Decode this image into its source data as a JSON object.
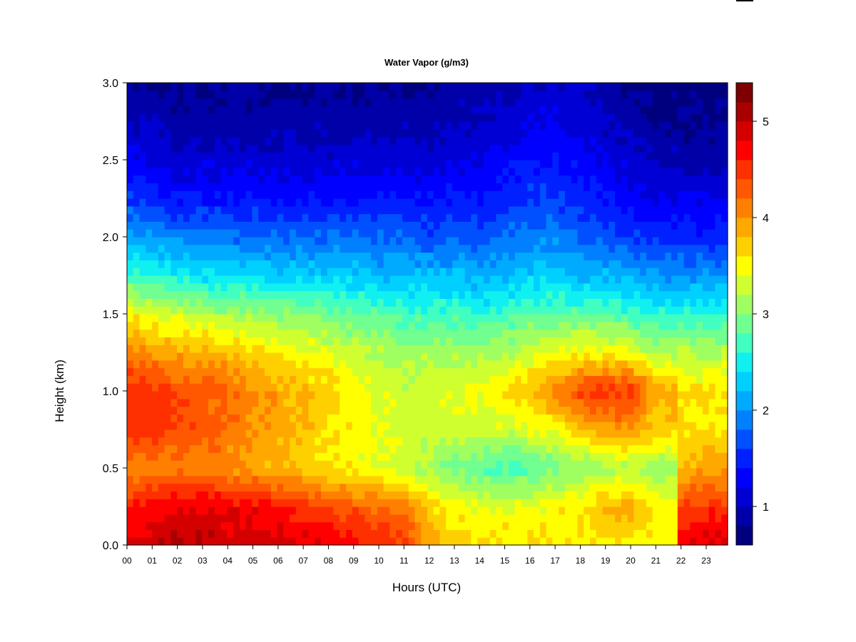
{
  "chart_data": {
    "type": "heatmap",
    "title": "Water Vapor (g/m3)",
    "xlabel": "Hours (UTC)",
    "ylabel": "Height (km)",
    "xlim": [
      0,
      23.85
    ],
    "ylim": [
      0.0,
      3.0
    ],
    "x_ticks": [
      "00",
      "01",
      "02",
      "03",
      "04",
      "05",
      "06",
      "07",
      "08",
      "09",
      "10",
      "11",
      "12",
      "13",
      "14",
      "15",
      "16",
      "17",
      "18",
      "19",
      "20",
      "21",
      "22",
      "23"
    ],
    "y_ticks": [
      "0.0",
      "0.5",
      "1.0",
      "1.5",
      "2.0",
      "2.5",
      "3.0"
    ],
    "colorbar": {
      "min": 0.6,
      "max": 5.4,
      "ticks": [
        "1",
        "2",
        "3",
        "4",
        "5"
      ],
      "colors": [
        "#00007f",
        "#0000a8",
        "#0000d4",
        "#0000ff",
        "#0020ff",
        "#0050ff",
        "#0080ff",
        "#00aaff",
        "#00d0ff",
        "#10f0f0",
        "#40ffc0",
        "#70ff90",
        "#a0ff60",
        "#d0ff30",
        "#ffff00",
        "#ffd000",
        "#ffa800",
        "#ff8000",
        "#ff5800",
        "#ff3000",
        "#ff0000",
        "#d40000",
        "#a80000",
        "#7f0000"
      ]
    },
    "values_note": "",
    "heights_km": [
      0.05,
      0.25,
      0.5,
      0.75,
      1.0,
      1.25,
      1.5,
      1.75,
      2.0,
      2.25,
      2.5,
      2.75,
      3.0
    ],
    "hours": [
      0,
      1,
      2,
      3,
      4,
      5,
      6,
      7,
      8,
      9,
      10,
      11,
      12,
      13,
      14,
      15,
      16,
      17,
      18,
      19,
      20,
      21,
      22,
      23
    ],
    "profiles": [
      [
        4.8,
        4.6,
        4.0,
        4.5,
        4.6,
        4.1,
        3.5,
        2.7,
        2.1,
        1.6,
        1.3,
        1.0,
        0.8
      ],
      [
        4.9,
        4.7,
        4.1,
        4.5,
        4.5,
        4.0,
        3.4,
        2.6,
        2.0,
        1.5,
        1.2,
        1.0,
        0.8
      ],
      [
        5.0,
        4.8,
        4.1,
        4.4,
        4.4,
        3.9,
        3.3,
        2.5,
        1.9,
        1.4,
        1.1,
        0.9,
        0.8
      ],
      [
        5.0,
        4.8,
        4.1,
        4.3,
        4.3,
        3.9,
        3.2,
        2.4,
        1.9,
        1.4,
        1.1,
        0.9,
        0.7
      ],
      [
        4.9,
        4.8,
        4.0,
        4.2,
        4.2,
        3.8,
        3.1,
        2.4,
        1.8,
        1.4,
        1.1,
        0.9,
        0.8
      ],
      [
        4.9,
        4.7,
        3.9,
        4.0,
        4.1,
        3.7,
        3.1,
        2.4,
        1.8,
        1.4,
        1.1,
        0.9,
        0.8
      ],
      [
        4.9,
        4.6,
        3.8,
        3.9,
        3.9,
        3.6,
        3.0,
        2.3,
        1.8,
        1.4,
        1.1,
        0.9,
        0.8
      ],
      [
        4.8,
        4.5,
        3.7,
        3.8,
        3.8,
        3.5,
        3.0,
        2.3,
        1.8,
        1.4,
        1.1,
        0.9,
        0.8
      ],
      [
        4.7,
        4.4,
        3.6,
        3.6,
        3.7,
        3.4,
        2.9,
        2.3,
        1.8,
        1.4,
        1.1,
        0.9,
        0.8
      ],
      [
        4.6,
        4.3,
        3.5,
        3.5,
        3.5,
        3.3,
        2.8,
        2.3,
        1.8,
        1.4,
        1.1,
        0.9,
        0.8
      ],
      [
        4.5,
        4.2,
        3.4,
        3.4,
        3.4,
        3.2,
        2.8,
        2.2,
        1.8,
        1.4,
        1.1,
        0.9,
        0.8
      ],
      [
        4.4,
        4.1,
        3.3,
        3.3,
        3.3,
        3.1,
        2.7,
        2.2,
        1.8,
        1.4,
        1.1,
        0.9,
        0.8
      ],
      [
        3.9,
        3.7,
        3.1,
        3.3,
        3.3,
        3.1,
        2.7,
        2.2,
        1.7,
        1.4,
        1.1,
        0.9,
        0.8
      ],
      [
        3.6,
        3.5,
        2.9,
        3.3,
        3.4,
        3.1,
        2.7,
        2.2,
        1.8,
        1.4,
        1.2,
        1.0,
        0.8
      ],
      [
        3.6,
        3.4,
        2.8,
        3.3,
        3.5,
        3.1,
        2.6,
        2.1,
        1.7,
        1.4,
        1.2,
        1.0,
        0.9
      ],
      [
        3.6,
        3.4,
        2.7,
        3.3,
        3.6,
        3.2,
        2.7,
        2.2,
        1.8,
        1.5,
        1.3,
        1.1,
        0.9
      ],
      [
        3.6,
        3.4,
        2.8,
        3.4,
        3.8,
        3.3,
        2.8,
        2.3,
        1.9,
        1.6,
        1.4,
        1.2,
        1.0
      ],
      [
        3.6,
        3.5,
        2.9,
        3.5,
        4.1,
        3.4,
        2.8,
        2.3,
        1.9,
        1.6,
        1.4,
        1.2,
        1.0
      ],
      [
        3.6,
        3.6,
        3.0,
        3.8,
        4.4,
        3.5,
        2.8,
        2.2,
        1.8,
        1.5,
        1.3,
        1.1,
        1.0
      ],
      [
        3.6,
        3.8,
        3.1,
        3.9,
        4.5,
        3.5,
        2.8,
        2.2,
        1.7,
        1.4,
        1.2,
        1.0,
        0.9
      ],
      [
        3.6,
        3.9,
        3.2,
        4.0,
        4.5,
        3.4,
        2.7,
        2.1,
        1.6,
        1.3,
        1.1,
        0.9,
        0.8
      ],
      [
        3.5,
        3.5,
        3.1,
        3.7,
        3.9,
        3.2,
        2.6,
        2.0,
        1.5,
        1.2,
        1.0,
        0.8,
        0.7
      ],
      [
        4.7,
        4.4,
        3.8,
        3.6,
        3.6,
        3.2,
        2.6,
        2.0,
        1.5,
        1.2,
        0.9,
        0.8,
        0.7
      ],
      [
        4.8,
        4.5,
        3.9,
        3.6,
        3.6,
        3.2,
        2.6,
        2.0,
        1.5,
        1.2,
        0.9,
        0.8,
        0.7
      ]
    ]
  }
}
